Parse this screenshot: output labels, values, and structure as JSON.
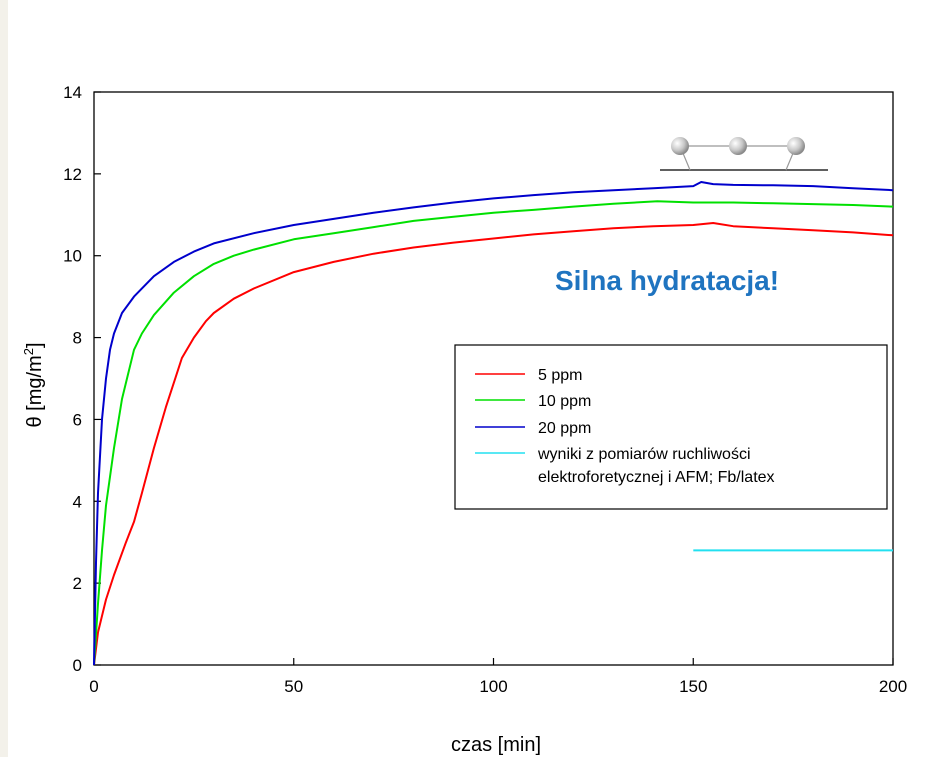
{
  "chart_data": {
    "type": "line",
    "xlabel": "czas [min]",
    "ylabel": "θ [mg/m",
    "ylabel_sup": "2",
    "ylabel_close": "]",
    "xlim": [
      0,
      200
    ],
    "ylim": [
      0,
      14
    ],
    "xticks": [
      0,
      50,
      100,
      150,
      200
    ],
    "yticks": [
      0,
      2,
      4,
      6,
      8,
      10,
      12,
      14
    ],
    "grid": false,
    "legend_position": "center-right",
    "annotation": "Silna hydratacja!",
    "series": [
      {
        "name": "5 ppm",
        "color": "#ff0000",
        "x": [
          0,
          1,
          3,
          5,
          8,
          10,
          12,
          15,
          18,
          20,
          22,
          25,
          28,
          30,
          35,
          40,
          50,
          60,
          70,
          80,
          90,
          100,
          110,
          120,
          130,
          140,
          150,
          155,
          160,
          170,
          180,
          190,
          200
        ],
        "y": [
          0,
          0.8,
          1.6,
          2.2,
          3.0,
          3.5,
          4.2,
          5.3,
          6.3,
          6.9,
          7.5,
          8.0,
          8.4,
          8.6,
          8.95,
          9.2,
          9.6,
          9.85,
          10.05,
          10.2,
          10.32,
          10.42,
          10.52,
          10.6,
          10.67,
          10.72,
          10.75,
          10.8,
          10.72,
          10.67,
          10.62,
          10.57,
          10.5
        ]
      },
      {
        "name": "10 ppm",
        "color": "#00e000",
        "x": [
          0,
          1,
          2,
          3,
          5,
          7,
          9,
          10,
          12,
          15,
          20,
          25,
          30,
          35,
          40,
          50,
          60,
          70,
          80,
          90,
          100,
          110,
          120,
          130,
          141,
          150,
          160,
          170,
          180,
          190,
          200
        ],
        "y": [
          0,
          1.5,
          2.8,
          3.9,
          5.3,
          6.5,
          7.3,
          7.7,
          8.1,
          8.55,
          9.1,
          9.5,
          9.8,
          10.0,
          10.15,
          10.4,
          10.55,
          10.7,
          10.85,
          10.95,
          11.05,
          11.12,
          11.2,
          11.27,
          11.33,
          11.3,
          11.3,
          11.28,
          11.26,
          11.24,
          11.2
        ]
      },
      {
        "name": "20 ppm",
        "color": "#0000cc",
        "x": [
          0,
          0.5,
          1,
          2,
          3,
          4,
          5,
          7,
          10,
          15,
          20,
          25,
          30,
          40,
          50,
          60,
          70,
          80,
          90,
          100,
          110,
          120,
          130,
          140,
          150,
          152,
          155,
          160,
          170,
          180,
          190,
          200
        ],
        "y": [
          0,
          2.5,
          4.2,
          6.0,
          7.0,
          7.7,
          8.1,
          8.6,
          9.0,
          9.5,
          9.85,
          10.1,
          10.3,
          10.55,
          10.75,
          10.9,
          11.05,
          11.18,
          11.3,
          11.4,
          11.48,
          11.55,
          11.6,
          11.65,
          11.7,
          11.8,
          11.75,
          11.73,
          11.72,
          11.7,
          11.65,
          11.6
        ]
      },
      {
        "name": "wyniki z pomiarów ruchliwości",
        "name_line2": "elektroforetycznej i AFM; Fb/latex",
        "color": "#22e0f0",
        "x": [
          150,
          200
        ],
        "y": [
          2.8,
          2.8
        ]
      }
    ]
  }
}
